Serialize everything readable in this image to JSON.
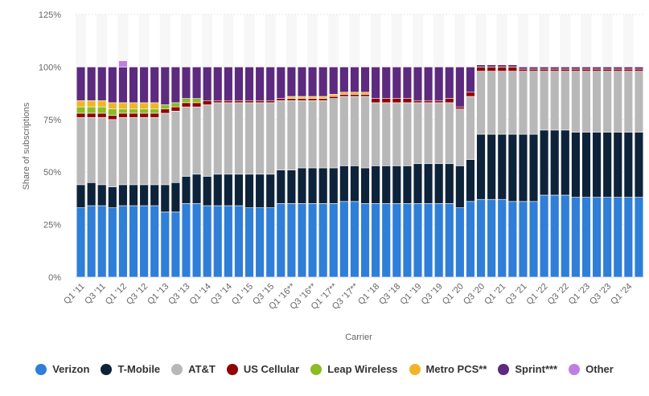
{
  "chart_data": {
    "type": "bar",
    "stacked": true,
    "ylabel": "Share of subscriptions",
    "xlabel": "Carrier",
    "ylim": [
      0,
      125
    ],
    "yticks": [
      "0%",
      "25%",
      "50%",
      "75%",
      "100%",
      "125%"
    ],
    "legend_position": "bottom",
    "categories": [
      "Q1 '11",
      "Q2 '11",
      "Q3 '11",
      "Q4 '11",
      "Q1 '12",
      "Q2 '12",
      "Q3 '12",
      "Q4 '12",
      "Q1 '13",
      "Q2 '13",
      "Q3 '13",
      "Q4 '13",
      "Q1 '14",
      "Q2 '14",
      "Q3 '14",
      "Q4 '14",
      "Q1 '15",
      "Q2 '15",
      "Q3 '15",
      "Q4 '15",
      "Q1 '16**",
      "Q2 '16**",
      "Q3 '16**",
      "Q4 '16**",
      "Q1 '17**",
      "Q2 '17**",
      "Q3 '17**",
      "Q4 '17**",
      "Q1 '18",
      "Q2 '18",
      "Q3 '18",
      "Q4 '18",
      "Q1 '19",
      "Q2 '19",
      "Q3 '19",
      "Q4 '19",
      "Q1 '20",
      "Q2 '20",
      "Q3 '20",
      "Q4 '20",
      "Q1 '21",
      "Q2 '21",
      "Q3 '21",
      "Q4 '21",
      "Q1 '22",
      "Q2 '22",
      "Q3 '22",
      "Q4 '22",
      "Q1 '23",
      "Q2 '23",
      "Q3 '23",
      "Q4 '23",
      "Q1 '24",
      "Q2 '24"
    ],
    "tick_labels": [
      "Q1 '11",
      "Q3 '11",
      "Q1 '12",
      "Q3 '12",
      "Q1 '13",
      "Q3 '13",
      "Q1 '14",
      "Q3 '14",
      "Q1 '15",
      "Q3 '15",
      "Q1 '16**",
      "Q3 '16**",
      "Q1 '17**",
      "Q3 '17**",
      "Q1 '18",
      "Q3 '18",
      "Q1 '19",
      "Q3 '19",
      "Q1 '20",
      "Q3 '20",
      "Q1 '21",
      "Q3 '21",
      "Q1 '22",
      "Q3 '22",
      "Q1 '23",
      "Q3 '23",
      "Q1 '24"
    ],
    "series": [
      {
        "name": "Verizon",
        "color": "#2f7ed8",
        "values": [
          33,
          34,
          34,
          33,
          34,
          34,
          34,
          34,
          31,
          31,
          35,
          35,
          34,
          34,
          34,
          34,
          33,
          33,
          33,
          35,
          35,
          35,
          35,
          35,
          35,
          36,
          36,
          35,
          35,
          35,
          35,
          35,
          35,
          35,
          35,
          35,
          33,
          36,
          37,
          37,
          37,
          36,
          36,
          36,
          39,
          39,
          39,
          38,
          38,
          38,
          38,
          38,
          38,
          38
        ]
      },
      {
        "name": "T-Mobile",
        "color": "#0d233a",
        "values": [
          11,
          11,
          10,
          10,
          10,
          10,
          10,
          10,
          13,
          14,
          13,
          14,
          14,
          15,
          15,
          15,
          16,
          16,
          16,
          16,
          16,
          17,
          17,
          17,
          17,
          17,
          17,
          17,
          18,
          18,
          18,
          18,
          19,
          19,
          19,
          19,
          20,
          20,
          31,
          31,
          31,
          32,
          32,
          32,
          31,
          31,
          31,
          31,
          31,
          31,
          31,
          31,
          31,
          31
        ]
      },
      {
        "name": "AT&T",
        "color": "#b8b8b8",
        "values": [
          32,
          31,
          32,
          32,
          32,
          32,
          32,
          32,
          34,
          34,
          33,
          32,
          34,
          34,
          34,
          34,
          34,
          34,
          34,
          33,
          33,
          32,
          32,
          32,
          33,
          33,
          33,
          34,
          30,
          30,
          30,
          30,
          29,
          29,
          29,
          29,
          27,
          30,
          30,
          30,
          30,
          30,
          30,
          30,
          28,
          28,
          28,
          29,
          29,
          29,
          29,
          29,
          29,
          29
        ]
      },
      {
        "name": "US Cellular",
        "color": "#910000",
        "values": [
          2,
          2,
          2,
          2,
          2,
          2,
          2,
          2,
          2,
          2,
          2,
          2,
          2,
          1,
          1,
          1,
          1,
          1,
          1,
          1,
          1,
          1,
          1,
          1,
          1,
          1,
          1,
          1,
          2,
          2,
          2,
          2,
          1,
          1,
          1,
          2,
          1,
          2,
          2,
          2,
          2,
          2,
          1,
          1,
          1,
          1,
          1,
          1,
          1,
          1,
          1,
          1,
          1,
          1
        ]
      },
      {
        "name": "Leap Wireless",
        "color": "#8bbc21",
        "values": [
          3,
          3,
          3,
          3,
          2,
          2,
          2,
          2,
          2,
          2,
          2,
          2,
          0,
          0,
          0,
          0,
          0,
          0,
          0,
          0,
          0,
          0,
          0,
          0,
          0,
          0,
          0,
          0,
          0,
          0,
          0,
          0,
          0,
          0,
          0,
          0,
          0,
          0,
          0,
          0,
          0,
          0,
          0,
          0,
          0,
          0,
          0,
          0,
          0,
          0,
          0,
          0,
          0,
          0
        ]
      },
      {
        "name": "Metro PCS**",
        "color": "#f0b428",
        "values": [
          3,
          3,
          3,
          3,
          3,
          3,
          3,
          3,
          0,
          0,
          0,
          0,
          0,
          0,
          0,
          0,
          0,
          0,
          0,
          0,
          1,
          1,
          1,
          1,
          1,
          1,
          1,
          1,
          0,
          0,
          0,
          0,
          0,
          0,
          0,
          0,
          0,
          0,
          0,
          0,
          0,
          0,
          0,
          0,
          0,
          0,
          0,
          0,
          0,
          0,
          0,
          0,
          0,
          0
        ]
      },
      {
        "name": "Sprint***",
        "color": "#5c2a7e",
        "values": [
          16,
          16,
          16,
          17,
          17,
          17,
          17,
          17,
          18,
          17,
          15,
          15,
          16,
          16,
          16,
          16,
          16,
          16,
          16,
          15,
          14,
          14,
          14,
          14,
          13,
          12,
          12,
          12,
          15,
          15,
          15,
          15,
          16,
          16,
          16,
          15,
          19,
          12,
          1,
          1,
          1,
          1,
          1,
          1,
          1,
          1,
          1,
          1,
          1,
          1,
          1,
          1,
          1,
          1
        ]
      },
      {
        "name": "Other",
        "color": "#c07fe0",
        "values": [
          0,
          0,
          0,
          0,
          3,
          0,
          0,
          0,
          0,
          0,
          0,
          0,
          0,
          0,
          0,
          0,
          0,
          0,
          0,
          0,
          0,
          0,
          0,
          0,
          0,
          0,
          0,
          0,
          0,
          0,
          0,
          0,
          0,
          0,
          0,
          0,
          0,
          0,
          0,
          0,
          0,
          0,
          0,
          0,
          0,
          0,
          0,
          0,
          0,
          0,
          0,
          0,
          0,
          0
        ]
      }
    ]
  }
}
